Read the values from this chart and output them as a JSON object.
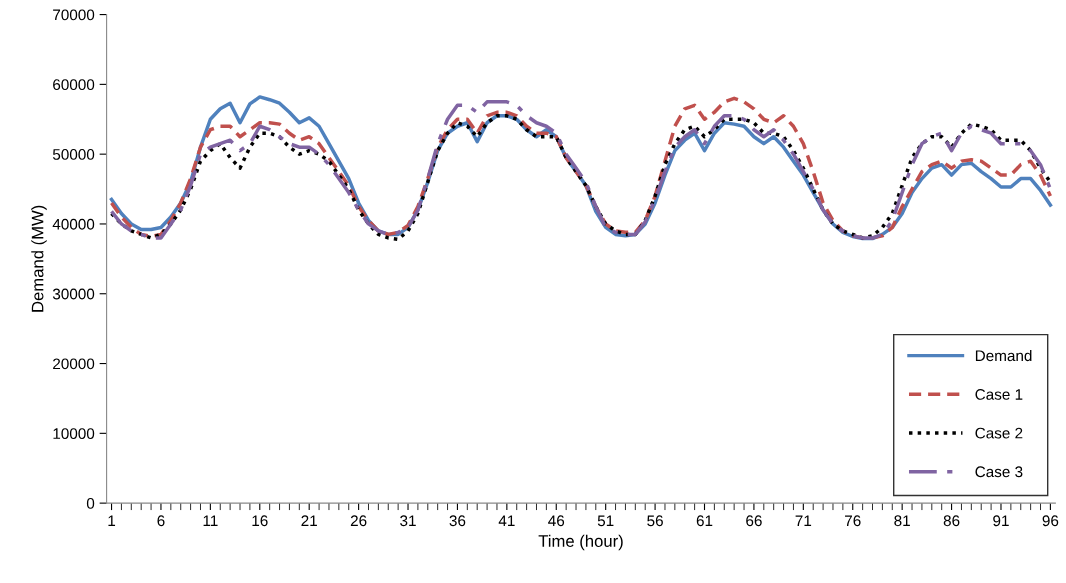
{
  "chart_data": {
    "type": "line",
    "xlabel": "Time (hour)",
    "ylabel": "Demand (MW)",
    "categories": [
      "1",
      null,
      null,
      null,
      null,
      "6",
      null,
      null,
      null,
      null,
      "11",
      null,
      null,
      null,
      null,
      "16",
      null,
      null,
      null,
      null,
      "21",
      null,
      null,
      null,
      null,
      "26",
      null,
      null,
      null,
      null,
      "31",
      null,
      null,
      null,
      null,
      "36",
      null,
      null,
      null,
      null,
      "41",
      null,
      null,
      null,
      null,
      "46",
      null,
      null,
      null,
      null,
      "51",
      null,
      null,
      null,
      null,
      "56",
      null,
      null,
      null,
      null,
      "61",
      null,
      null,
      null,
      null,
      "66",
      null,
      null,
      null,
      null,
      "71",
      null,
      null,
      null,
      null,
      "76",
      null,
      null,
      null,
      null,
      "81",
      null,
      null,
      null,
      null,
      "86",
      null,
      null,
      null,
      null,
      "91",
      null,
      null,
      null,
      null,
      "96"
    ],
    "ylim": [
      0,
      70000
    ],
    "yticks": [
      0,
      10000,
      20000,
      30000,
      40000,
      50000,
      60000,
      70000
    ],
    "grid": false,
    "legend": "bottom right",
    "marker": "none",
    "series": [
      {
        "name": "Demand",
        "color": "#4f81bd",
        "line_style": "solid",
        "values": [
          43500,
          41500,
          40000,
          39200,
          39200,
          39500,
          41000,
          43000,
          46000,
          51000,
          55000,
          56500,
          57300,
          54500,
          57200,
          58200,
          57800,
          57300,
          56000,
          54500,
          55200,
          54000,
          51500,
          49000,
          46500,
          43000,
          40500,
          39000,
          38500,
          38500,
          39500,
          42000,
          46000,
          50500,
          53000,
          54000,
          54500,
          51800,
          54500,
          55500,
          55500,
          55000,
          53500,
          52500,
          53500,
          52500,
          49500,
          47500,
          45500,
          41800,
          39500,
          38500,
          38300,
          38500,
          40000,
          43000,
          47000,
          50500,
          52000,
          53000,
          50500,
          53000,
          54500,
          54300,
          54000,
          52500,
          51500,
          52500,
          51000,
          49000,
          47000,
          44500,
          42000,
          40000,
          38800,
          38200,
          37900,
          37900,
          38500,
          39500,
          41500,
          44500,
          46500,
          48000,
          48500,
          47000,
          48500,
          48700,
          47500,
          46500,
          45300,
          45300,
          46500,
          46500,
          44800,
          42700
        ]
      },
      {
        "name": "Case 1",
        "color": "#c0504d",
        "line_style": "dashed",
        "values": [
          43000,
          41000,
          39500,
          38500,
          38200,
          38500,
          40500,
          43000,
          46500,
          51000,
          53500,
          54000,
          54000,
          52500,
          53500,
          54500,
          54500,
          54300,
          53000,
          52000,
          52500,
          51500,
          49500,
          47500,
          45500,
          42500,
          40500,
          39000,
          38500,
          38800,
          39800,
          42500,
          46500,
          51000,
          53500,
          55000,
          55000,
          53000,
          55500,
          56000,
          56000,
          55500,
          54000,
          53000,
          53000,
          52500,
          49500,
          47500,
          45500,
          42500,
          40000,
          39000,
          38800,
          38800,
          40500,
          44000,
          49000,
          54000,
          56500,
          57000,
          55000,
          56000,
          57500,
          58000,
          57500,
          56500,
          55000,
          54500,
          55500,
          54000,
          51500,
          47500,
          43000,
          40500,
          39000,
          38300,
          38000,
          38000,
          38300,
          39500,
          42500,
          45000,
          47500,
          48500,
          49000,
          48000,
          49000,
          49200,
          49000,
          48000,
          47000,
          47000,
          48500,
          49000,
          47000,
          44000
        ]
      },
      {
        "name": "Case 2",
        "color": "#000000",
        "line_style": "dotted",
        "values": [
          41500,
          40000,
          39000,
          38500,
          38000,
          38500,
          40000,
          42000,
          45000,
          49000,
          50500,
          51500,
          49500,
          48000,
          51000,
          53000,
          53000,
          52500,
          51000,
          50000,
          50500,
          50000,
          49000,
          47000,
          45000,
          42000,
          40000,
          38500,
          38000,
          37800,
          39000,
          41500,
          46000,
          50500,
          53000,
          54500,
          54000,
          52500,
          54500,
          55500,
          55500,
          55000,
          53500,
          52500,
          52500,
          52500,
          49500,
          47500,
          45500,
          42500,
          40000,
          39000,
          38500,
          38500,
          40500,
          44000,
          48500,
          51500,
          53500,
          54000,
          52500,
          53500,
          55000,
          55000,
          55000,
          54500,
          53000,
          53000,
          52500,
          50500,
          48000,
          45000,
          42000,
          40000,
          39000,
          38500,
          38000,
          38300,
          39500,
          41500,
          45500,
          49500,
          51500,
          52500,
          52500,
          51000,
          53000,
          54300,
          54000,
          53500,
          52000,
          52000,
          52000,
          50500,
          48000,
          46000
        ]
      },
      {
        "name": "Case 3",
        "color": "#8064a2",
        "line_style": "dashdot",
        "values": [
          41800,
          40000,
          39000,
          38500,
          38000,
          38000,
          40000,
          42000,
          45500,
          50000,
          51000,
          51500,
          52000,
          50500,
          51500,
          54000,
          53500,
          52500,
          51500,
          51000,
          51000,
          50000,
          48500,
          46500,
          44500,
          42000,
          40000,
          39000,
          38500,
          38800,
          39500,
          42000,
          46500,
          51500,
          55000,
          57000,
          57000,
          56000,
          57500,
          57500,
          57500,
          57000,
          55500,
          54500,
          54000,
          53000,
          50000,
          48000,
          46000,
          42500,
          39500,
          38800,
          38500,
          38500,
          40300,
          43500,
          47500,
          51000,
          52500,
          53500,
          51500,
          54000,
          55500,
          55500,
          55000,
          53500,
          52500,
          53500,
          52000,
          50000,
          47500,
          45000,
          42000,
          40000,
          39000,
          38300,
          38000,
          38000,
          38500,
          40500,
          44500,
          48500,
          51500,
          52500,
          53000,
          50500,
          53000,
          54000,
          53500,
          53000,
          51500,
          51500,
          51500,
          50500,
          48500,
          45000
        ]
      }
    ]
  }
}
